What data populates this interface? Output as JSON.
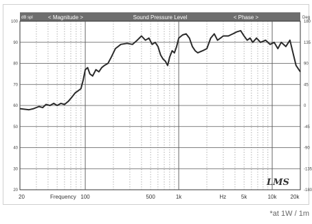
{
  "chart_data": {
    "type": "line",
    "header": {
      "left_unit": "dB spl",
      "right_unit": "Deg",
      "magnitude_label": "< Magnitude >",
      "center_title": "Sound Pressure Level",
      "phase_label": "< Phase >"
    },
    "x_scale": "log",
    "xlim": [
      20,
      20000
    ],
    "x_ticks": [
      {
        "value": 20,
        "label": "20"
      },
      {
        "value": 100,
        "label": "100"
      },
      {
        "value": 500,
        "label": "500"
      },
      {
        "value": 1000,
        "label": "1k"
      },
      {
        "value": 5000,
        "label": "5k"
      },
      {
        "value": 10000,
        "label": "10k"
      },
      {
        "value": 20000,
        "label": "20k"
      }
    ],
    "x_text_labels": [
      {
        "value": 45,
        "label": "Frequency"
      },
      {
        "value": 2300,
        "label": "Hz"
      }
    ],
    "ylim": [
      20,
      100
    ],
    "y_ticks": [
      "100",
      "90",
      "80",
      "70",
      "60",
      "50",
      "40",
      "30",
      "20"
    ],
    "y2lim": [
      -180,
      180
    ],
    "y2_ticks": [
      "180",
      "135",
      "90",
      "45",
      "0",
      "-45",
      "-90",
      "-135",
      "-180"
    ],
    "grid": true,
    "logo": "LMS",
    "series": [
      {
        "values": [
          [
            20,
            58.5
          ],
          [
            25,
            58
          ],
          [
            28,
            58.5
          ],
          [
            32,
            59.5
          ],
          [
            35,
            59
          ],
          [
            38,
            60.5
          ],
          [
            42,
            60
          ],
          [
            46,
            61
          ],
          [
            50,
            60
          ],
          [
            55,
            61
          ],
          [
            60,
            60.5
          ],
          [
            66,
            62
          ],
          [
            72,
            64
          ],
          [
            78,
            66
          ],
          [
            84,
            67
          ],
          [
            90,
            68
          ],
          [
            95,
            72
          ],
          [
            100,
            77
          ],
          [
            106,
            78
          ],
          [
            112,
            75
          ],
          [
            120,
            74
          ],
          [
            130,
            77
          ],
          [
            140,
            76
          ],
          [
            150,
            78
          ],
          [
            160,
            79
          ],
          [
            175,
            80
          ],
          [
            190,
            83
          ],
          [
            210,
            87
          ],
          [
            240,
            89
          ],
          [
            280,
            89.5
          ],
          [
            320,
            89
          ],
          [
            360,
            91
          ],
          [
            400,
            93
          ],
          [
            440,
            91
          ],
          [
            480,
            92
          ],
          [
            520,
            89
          ],
          [
            560,
            90
          ],
          [
            600,
            88
          ],
          [
            640,
            84
          ],
          [
            680,
            82
          ],
          [
            720,
            81
          ],
          [
            760,
            79
          ],
          [
            800,
            83
          ],
          [
            850,
            86
          ],
          [
            900,
            85
          ],
          [
            950,
            88
          ],
          [
            1000,
            92
          ],
          [
            1100,
            93.5
          ],
          [
            1200,
            94
          ],
          [
            1300,
            92
          ],
          [
            1400,
            88
          ],
          [
            1500,
            86
          ],
          [
            1600,
            85
          ],
          [
            1800,
            86
          ],
          [
            2000,
            87
          ],
          [
            2200,
            92
          ],
          [
            2400,
            94
          ],
          [
            2600,
            91
          ],
          [
            2800,
            92
          ],
          [
            3000,
            93
          ],
          [
            3400,
            93
          ],
          [
            3800,
            94
          ],
          [
            4200,
            95
          ],
          [
            4600,
            95.5
          ],
          [
            5000,
            93
          ],
          [
            5400,
            91
          ],
          [
            5800,
            92
          ],
          [
            6200,
            90
          ],
          [
            6800,
            92
          ],
          [
            7500,
            90
          ],
          [
            8500,
            91
          ],
          [
            9500,
            89
          ],
          [
            10500,
            90
          ],
          [
            11500,
            87
          ],
          [
            12500,
            90
          ],
          [
            14000,
            88
          ],
          [
            15500,
            91
          ],
          [
            16500,
            86
          ],
          [
            18000,
            79
          ],
          [
            20000,
            76
          ]
        ]
      }
    ]
  },
  "footnote": "*at 1W / 1m"
}
